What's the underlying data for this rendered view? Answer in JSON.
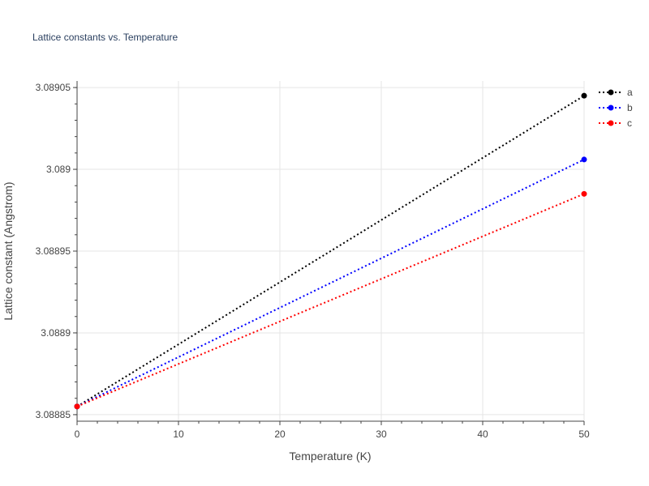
{
  "chart_data": {
    "type": "line",
    "title": "Lattice constants vs. Temperature",
    "xlabel": "Temperature (K)",
    "ylabel": "Lattice constant (Angstrom)",
    "x": [
      0,
      50
    ],
    "xlim": [
      0,
      50
    ],
    "ylim": [
      3.088846,
      3.089054
    ],
    "xticks": [
      0,
      10,
      20,
      30,
      40,
      50
    ],
    "xtick_labels": [
      "0",
      "10",
      "20",
      "30",
      "40",
      "50"
    ],
    "yticks": [
      3.08885,
      3.0889,
      3.08895,
      3.089,
      3.08905
    ],
    "ytick_labels": [
      "3.08885",
      "3.0889",
      "3.08895",
      "3.089",
      "3.08905"
    ],
    "grid": true,
    "legend_position": "top-right",
    "series": [
      {
        "name": "a",
        "color": "#000000",
        "values": [
          3.088855,
          3.089045
        ]
      },
      {
        "name": "b",
        "color": "#0000ff",
        "values": [
          3.088855,
          3.089006
        ]
      },
      {
        "name": "c",
        "color": "#ff0000",
        "values": [
          3.088855,
          3.088985
        ]
      }
    ]
  }
}
